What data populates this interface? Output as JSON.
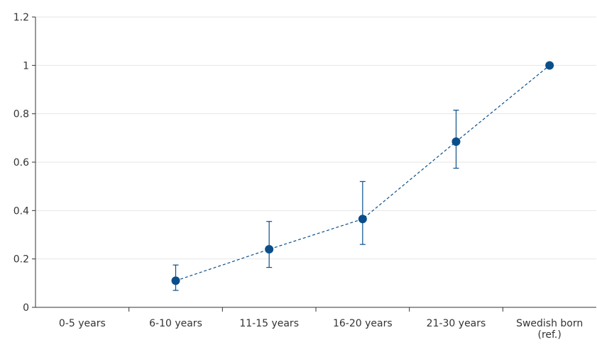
{
  "chart_data": {
    "type": "line",
    "title": "",
    "xlabel": "",
    "ylabel": "",
    "categories": [
      [
        "0-5 years"
      ],
      [
        "6-10 years"
      ],
      [
        "11-15 years"
      ],
      [
        "16-20 years"
      ],
      [
        "21-30 years"
      ],
      [
        "Swedish born",
        "(ref.)"
      ]
    ],
    "ylim": [
      0,
      1.2
    ],
    "yticks": [
      "0",
      "0.2",
      "0.4",
      "0.6",
      "0.8",
      "1",
      "1.2"
    ],
    "grid": true,
    "legend": "none",
    "series": [
      {
        "values": [
          null,
          0.11,
          0.24,
          0.365,
          0.685,
          1.0
        ],
        "lower": [
          null,
          0.07,
          0.165,
          0.26,
          0.575,
          null
        ],
        "upper": [
          null,
          0.175,
          0.355,
          0.52,
          0.815,
          null
        ],
        "color": "#0b4f8a",
        "line_style": "dashed"
      }
    ]
  }
}
